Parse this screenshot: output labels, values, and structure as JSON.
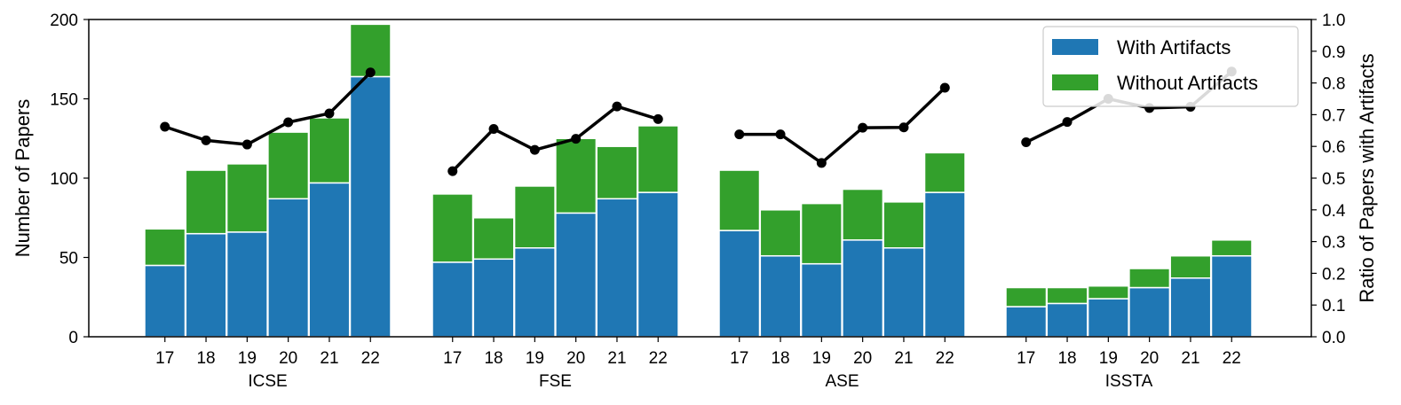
{
  "chart_data": {
    "type": "bar",
    "stacked": true,
    "groups": [
      "ICSE",
      "FSE",
      "ASE",
      "ISSTA"
    ],
    "years": [
      "17",
      "18",
      "19",
      "20",
      "21",
      "22"
    ],
    "series": [
      {
        "name": "With Artifacts",
        "color": "#1f77b4",
        "values": {
          "ICSE": [
            45,
            65,
            66,
            87,
            97,
            164
          ],
          "FSE": [
            47,
            49,
            56,
            78,
            87,
            91
          ],
          "ASE": [
            67,
            51,
            46,
            61,
            56,
            91
          ],
          "ISSTA": [
            19,
            21,
            24,
            31,
            37,
            51
          ]
        }
      },
      {
        "name": "Without Artifacts",
        "color": "#33a02c",
        "values": {
          "ICSE": [
            23,
            40,
            43,
            42,
            41,
            33
          ],
          "FSE": [
            43,
            26,
            39,
            47,
            33,
            42
          ],
          "ASE": [
            38,
            29,
            38,
            32,
            29,
            25
          ],
          "ISSTA": [
            12,
            10,
            8,
            12,
            14,
            10
          ]
        }
      }
    ],
    "ratio_series": {
      "color": "#000000",
      "values": {
        "ICSE": [
          0.662,
          0.619,
          0.606,
          0.676,
          0.704,
          0.833
        ],
        "FSE": [
          0.522,
          0.655,
          0.589,
          0.624,
          0.726,
          0.686
        ],
        "ASE": [
          0.638,
          0.638,
          0.548,
          0.659,
          0.66,
          0.785
        ],
        "ISSTA": [
          0.613,
          0.677,
          0.75,
          0.721,
          0.725,
          0.836
        ]
      }
    },
    "ylabel": "Number of Papers",
    "y2label": "Ratio of Papers with Artifacts",
    "ylim": [
      0,
      200
    ],
    "y2lim": [
      0,
      1.0
    ],
    "yticks": [
      0,
      50,
      100,
      150,
      200
    ],
    "y2ticks": [
      "0.0",
      "0.1",
      "0.2",
      "0.3",
      "0.4",
      "0.5",
      "0.6",
      "0.7",
      "0.8",
      "0.9",
      "1.0"
    ],
    "legend": {
      "position": "upper right",
      "entries": [
        "With Artifacts",
        "Without Artifacts"
      ]
    },
    "grid": false
  }
}
